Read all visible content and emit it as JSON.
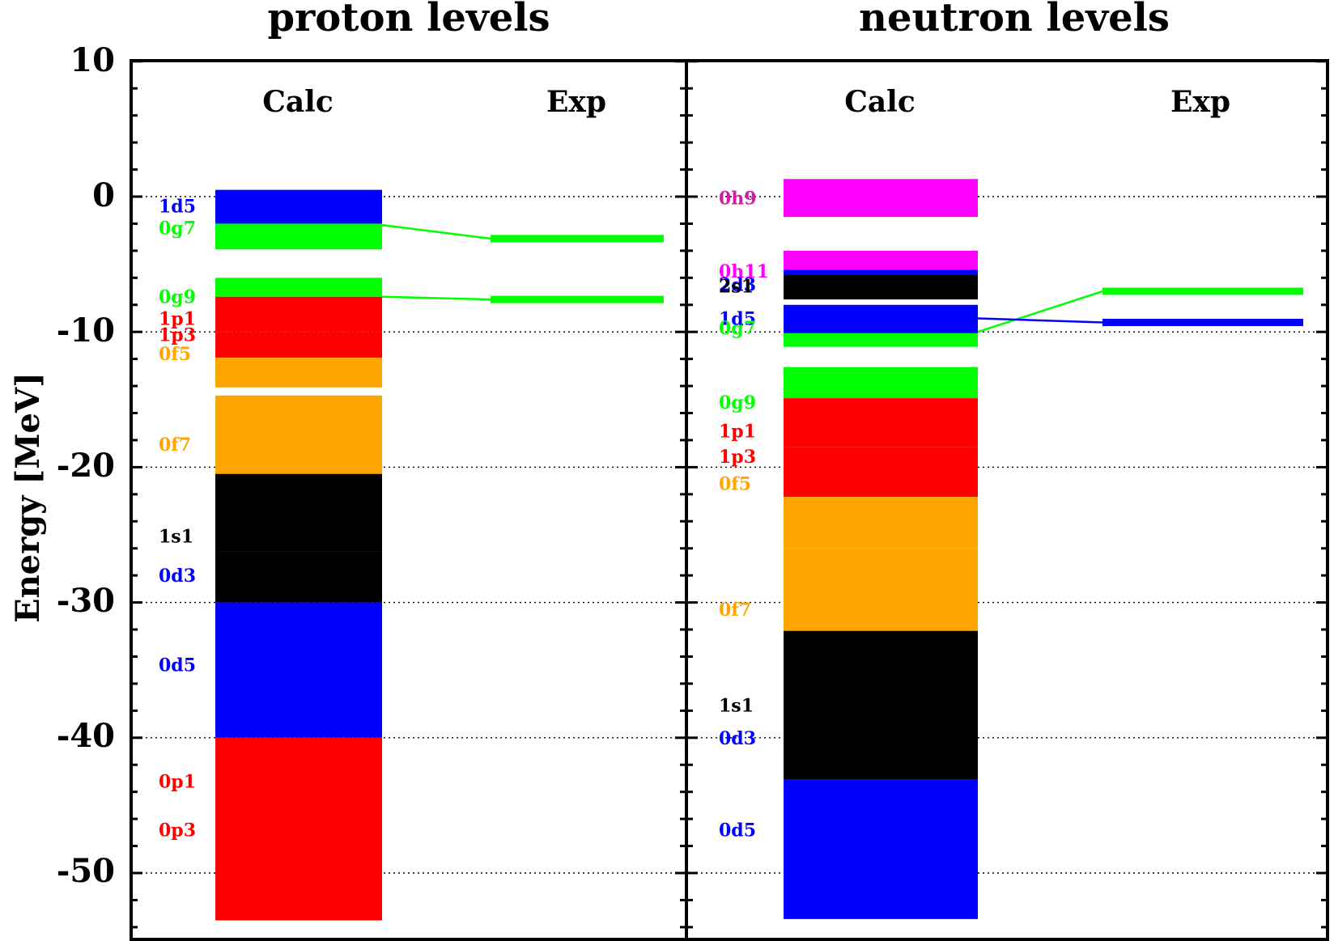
{
  "chart_data": {
    "type": "bar",
    "ylabel": "Energy [MeV]",
    "ylim": [
      -54,
      10
    ],
    "yticks": [
      10,
      0,
      -10,
      -20,
      -30,
      -40,
      -50
    ],
    "ytick_labels": [
      "10",
      "0",
      "-10",
      "-20",
      "-30",
      "-40",
      "-50"
    ],
    "grid": "horizontal dotted at major ticks",
    "colors": {
      "s": "#000000",
      "p": "#ff0000",
      "d": "#0000ff",
      "f": "#ffa500",
      "g": "#00ff00",
      "h": "#ff00ff"
    },
    "panels": [
      {
        "title": "proton levels",
        "columns": [
          "Calc",
          "Exp"
        ],
        "calc_levels": [
          {
            "label": "1d5",
            "top": 0.5,
            "bottom": -2.0,
            "color": "#0000ff"
          },
          {
            "label": "0g7",
            "top": -2.0,
            "bottom": -3.9,
            "color": "#00ff00"
          },
          {
            "label": "0g9",
            "top": -6.0,
            "bottom": -7.4,
            "color": "#00ff00"
          },
          {
            "label": "1p1",
            "top": -7.4,
            "bottom": -10.0,
            "color": "#ff0000"
          },
          {
            "label": "1p3",
            "top": -10.0,
            "bottom": -11.9,
            "color": "#ff0000"
          },
          {
            "label": "0f5",
            "top": -11.9,
            "bottom": -14.1,
            "color": "#ffa500"
          },
          {
            "label": "0f7",
            "top": -14.7,
            "bottom": -20.5,
            "color": "#ffa500"
          },
          {
            "label": "1s1",
            "top": -20.5,
            "bottom": -26.2,
            "color": "#000000"
          },
          {
            "label": "0d3",
            "top": -26.2,
            "bottom": -30.0,
            "color": "#000000"
          },
          {
            "label": "0d5",
            "top": -30.0,
            "bottom": -40.0,
            "color": "#0000ff"
          },
          {
            "label": "0p1",
            "top": -40.0,
            "bottom": -50.0,
            "color": "#ff0000"
          },
          {
            "label": "0p3",
            "top": -50.0,
            "bottom": -53.5,
            "color": "#ff0000"
          }
        ],
        "label_values": [
          {
            "text": "1d5",
            "y": -0.7,
            "color": "#0000ff"
          },
          {
            "text": "0g7",
            "y": -2.3,
            "color": "#00ff00"
          },
          {
            "text": "0g9",
            "y": -7.4,
            "color": "#00ff00"
          },
          {
            "text": "1p1",
            "y": -9.0,
            "color": "#ff0000"
          },
          {
            "text": "1p3",
            "y": -10.2,
            "color": "#ff0000"
          },
          {
            "text": "0f5",
            "y": -11.6,
            "color": "#ffa500"
          },
          {
            "text": "0f7",
            "y": -18.3,
            "color": "#ffa500"
          },
          {
            "text": "1s1",
            "y": -25.1,
            "color": "#000000"
          },
          {
            "text": "0d3",
            "y": -28.0,
            "color": "#0000ff"
          },
          {
            "text": "0d5",
            "y": -34.6,
            "color": "#0000ff"
          },
          {
            "text": "0p1",
            "y": -43.2,
            "color": "#ff0000"
          },
          {
            "text": "0p3",
            "y": -46.8,
            "color": "#ff0000"
          }
        ],
        "exp_levels": [
          {
            "y": -3.1,
            "color": "#00ff00"
          },
          {
            "y": -7.6,
            "color": "#00ff00"
          }
        ],
        "connectors": [
          {
            "from": -2.1,
            "to": -3.1,
            "color": "#00ff00"
          },
          {
            "from": -7.4,
            "to": -7.6,
            "color": "#00ff00"
          }
        ]
      },
      {
        "title": "neutron levels",
        "columns": [
          "Calc",
          "Exp"
        ],
        "calc_levels": [
          {
            "label": "0h9",
            "top": 1.3,
            "bottom": -1.5,
            "color": "#ff00ff"
          },
          {
            "label": "0h11",
            "top": -4.0,
            "bottom": -5.4,
            "color": "#ff00ff"
          },
          {
            "label": "2d3",
            "top": -5.4,
            "bottom": -5.8,
            "color": "#0000ff"
          },
          {
            "label": "2s1",
            "top": -5.8,
            "bottom": -7.6,
            "color": "#000000"
          },
          {
            "label": "1d5",
            "top": -8.0,
            "bottom": -10.1,
            "color": "#0000ff"
          },
          {
            "label": "0g7",
            "top": -10.1,
            "bottom": -11.1,
            "color": "#00ff00"
          },
          {
            "label": "0g9",
            "top": -12.6,
            "bottom": -14.9,
            "color": "#00ff00"
          },
          {
            "label": "1p1",
            "top": -14.9,
            "bottom": -18.5,
            "color": "#ff0000"
          },
          {
            "label": "1p3",
            "top": -18.5,
            "bottom": -22.2,
            "color": "#ff0000"
          },
          {
            "label": "0f5",
            "top": -22.2,
            "bottom": -26.0,
            "color": "#ffa500"
          },
          {
            "label": "0f7",
            "top": -26.0,
            "bottom": -32.1,
            "color": "#ffa500"
          },
          {
            "label": "1s1",
            "top": -32.1,
            "bottom": -37.5,
            "color": "#000000"
          },
          {
            "label": "0d3",
            "top": -37.5,
            "bottom": -43.1,
            "color": "#000000"
          },
          {
            "label": "0d5",
            "top": -43.1,
            "bottom": -53.4,
            "color": "#0000ff"
          }
        ],
        "label_values": [
          {
            "text": "0h9",
            "y": -0.1,
            "color": "#cc1fa0"
          },
          {
            "text": "0h11",
            "y": -5.5,
            "color": "#ff00ff"
          },
          {
            "text": "2d3",
            "y": -6.5,
            "color": "#0000ff"
          },
          {
            "text": "2s1",
            "y": -6.6,
            "color": "#000000"
          },
          {
            "text": "1d5",
            "y": -9.0,
            "color": "#0000ff"
          },
          {
            "text": "0g7",
            "y": -9.7,
            "color": "#00ff00"
          },
          {
            "text": "0g9",
            "y": -15.2,
            "color": "#00ff00"
          },
          {
            "text": "1p1",
            "y": -17.3,
            "color": "#ff0000"
          },
          {
            "text": "1p3",
            "y": -19.2,
            "color": "#ff0000"
          },
          {
            "text": "0f5",
            "y": -21.2,
            "color": "#ffa500"
          },
          {
            "text": "0f7",
            "y": -30.5,
            "color": "#ffa500"
          },
          {
            "text": "1s1",
            "y": -37.6,
            "color": "#000000"
          },
          {
            "text": "0d3",
            "y": -40.0,
            "color": "#0000ff"
          },
          {
            "text": "0d5",
            "y": -46.8,
            "color": "#0000ff"
          }
        ],
        "exp_levels": [
          {
            "y": -7.0,
            "color": "#00ff00"
          },
          {
            "y": -9.3,
            "color": "#0000ff"
          }
        ],
        "connectors": [
          {
            "from": -10.0,
            "to": -7.0,
            "color": "#00ff00"
          },
          {
            "from": -9.0,
            "to": -9.3,
            "color": "#0000ff"
          }
        ]
      }
    ]
  }
}
